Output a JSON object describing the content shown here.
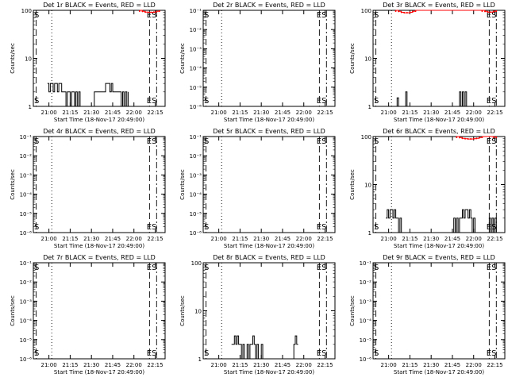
{
  "colors": {
    "background": "#ffffff",
    "events": "#000000",
    "lld": "#ff0000"
  },
  "x_ticks": [
    "21:00",
    "21:15",
    "21:30",
    "21:45",
    "22:00",
    "22:15"
  ],
  "x_label": "Start Time (18-Nov-17 20:49:00)",
  "y_label": "Counts/sec",
  "chart_data": [
    {
      "type": "line",
      "title": "Det 1r BLACK = Events, RED = LLD",
      "scale": "log",
      "ylim": [
        1,
        100
      ],
      "y_ticks": [
        "1",
        "10",
        "100"
      ],
      "x_ticks": [
        "21:00",
        "21:15",
        "21:30",
        "21:45",
        "22:00",
        "22:15"
      ],
      "xlabel": "Start Time (18-Nov-17 20:49:00)",
      "ylabel": "Counts/sec",
      "markers": [
        "S",
        "ES"
      ],
      "series": [
        {
          "color": "#000000",
          "x": [
            "20:59",
            "21:00",
            "21:01",
            "21:02",
            "21:03",
            "21:04",
            "21:05",
            "21:06",
            "21:07",
            "21:08",
            "21:09",
            "21:10",
            "21:11",
            "21:12",
            "21:13",
            "21:14",
            "21:15",
            "21:16",
            "21:17",
            "21:18",
            "21:19",
            "21:20",
            "21:21",
            "21:22",
            "21:23",
            "21:24",
            "21:25",
            "21:26",
            "21:27",
            "21:28",
            "21:29",
            "21:30",
            "21:31",
            "21:32",
            "21:33",
            "21:34",
            "21:35",
            "21:36",
            "21:37",
            "21:38",
            "21:39",
            "21:40",
            "21:41",
            "21:42",
            "21:43",
            "21:44",
            "21:45",
            "21:46",
            "21:47",
            "21:48",
            "21:49",
            "21:50",
            "21:51",
            "21:52",
            "21:53",
            "21:54",
            "21:55",
            "21:56"
          ],
          "y": [
            3,
            2,
            3,
            3,
            2,
            3,
            3,
            2,
            3,
            3,
            2,
            2,
            2,
            1,
            2,
            2,
            1,
            2,
            2,
            1,
            2,
            1,
            2,
            1,
            1,
            1,
            1,
            1,
            1,
            1,
            1,
            1,
            1,
            2,
            2,
            2,
            2,
            2,
            2,
            2,
            2,
            3,
            3,
            3,
            2,
            3,
            2,
            2,
            2,
            2,
            2,
            2,
            1,
            2,
            1,
            2,
            1,
            2
          ]
        },
        {
          "color": "#ff0000",
          "x": [
            "22:04",
            "22:06",
            "22:08",
            "22:10",
            "22:12",
            "22:14",
            "22:16",
            "22:18"
          ],
          "y": [
            100,
            95,
            92,
            91,
            91,
            92,
            95,
            100
          ]
        }
      ]
    },
    {
      "type": "line",
      "title": "Det 2r BLACK = Events, RED = LLD",
      "scale": "log",
      "ylim": [
        1e-06,
        0.1
      ],
      "y_ticks": [
        "10⁻⁶",
        "10⁻⁵",
        "10⁻⁴",
        "10⁻³",
        "10⁻²",
        "10⁻¹"
      ],
      "x_ticks": [
        "21:00",
        "21:15",
        "21:30",
        "21:45",
        "22:00",
        "22:15"
      ],
      "xlabel": "Start Time (18-Nov-17 20:49:00)",
      "ylabel": "Counts/sec",
      "markers": [
        "S",
        "ES"
      ],
      "series": []
    },
    {
      "type": "line",
      "title": "Det 3r BLACK = Events, RED = LLD",
      "scale": "log",
      "ylim": [
        1,
        100
      ],
      "y_ticks": [
        "1",
        "10",
        "100"
      ],
      "x_ticks": [
        "21:00",
        "21:15",
        "21:30",
        "21:45",
        "22:00",
        "22:15"
      ],
      "xlabel": "Start Time (18-Nov-17 20:49:00)",
      "ylabel": "Counts/sec",
      "markers": [
        "S",
        "ES"
      ],
      "series": [
        {
          "color": "#000000",
          "x": [
            "21:05",
            "21:06",
            "21:07",
            "21:08",
            "21:09",
            "21:10",
            "21:11",
            "21:12",
            "21:13",
            "21:14",
            "21:15",
            "21:16",
            "21:48",
            "21:49",
            "21:50",
            "21:51",
            "21:52",
            "21:53",
            "21:54",
            "21:55",
            "21:56",
            "21:57",
            "21:58",
            "21:59"
          ],
          "y": [
            1,
            1.5,
            1,
            1,
            1,
            1,
            1,
            2,
            1,
            1,
            1,
            1,
            1,
            1,
            2,
            1,
            2,
            1,
            2,
            1,
            1,
            1,
            1,
            1
          ]
        },
        {
          "color": "#ff0000",
          "x": [
            "21:05",
            "21:07",
            "21:09",
            "21:11",
            "21:13",
            "21:15",
            "21:17",
            "21:19",
            "22:06",
            "22:08",
            "22:10",
            "22:12",
            "22:14",
            "22:16"
          ],
          "y": [
            100,
            95,
            91,
            89,
            89,
            91,
            95,
            100,
            100,
            95,
            92,
            92,
            95,
            100
          ]
        }
      ]
    },
    {
      "type": "line",
      "title": "Det 4r BLACK = Events, RED = LLD",
      "scale": "log",
      "ylim": [
        1e-06,
        0.1
      ],
      "y_ticks": [
        "10⁻⁶",
        "10⁻⁵",
        "10⁻⁴",
        "10⁻³",
        "10⁻²",
        "10⁻¹"
      ],
      "x_ticks": [
        "21:00",
        "21:15",
        "21:30",
        "21:45",
        "22:00",
        "22:15"
      ],
      "xlabel": "Start Time (18-Nov-17 20:49:00)",
      "ylabel": "Counts/sec",
      "markers": [
        "S",
        "ES"
      ],
      "series": []
    },
    {
      "type": "line",
      "title": "Det 5r BLACK = Events, RED = LLD",
      "scale": "log",
      "ylim": [
        1e-06,
        0.1
      ],
      "y_ticks": [
        "10⁻⁶",
        "10⁻⁵",
        "10⁻⁴",
        "10⁻³",
        "10⁻²",
        "10⁻¹"
      ],
      "x_ticks": [
        "21:00",
        "21:15",
        "21:30",
        "21:45",
        "22:00",
        "22:15"
      ],
      "xlabel": "Start Time (18-Nov-17 20:49:00)",
      "ylabel": "Counts/sec",
      "markers": [
        "S",
        "ES"
      ],
      "series": []
    },
    {
      "type": "line",
      "title": "Det 6r BLACK = Events, RED = LLD",
      "scale": "log",
      "ylim": [
        1,
        100
      ],
      "y_ticks": [
        "1",
        "10",
        "100"
      ],
      "x_ticks": [
        "21:00",
        "21:15",
        "21:30",
        "21:45",
        "22:00",
        "22:15"
      ],
      "xlabel": "Start Time (18-Nov-17 20:49:00)",
      "ylabel": "Counts/sec",
      "markers": [
        "S",
        "ES"
      ],
      "series": [
        {
          "color": "#000000",
          "x": [
            "20:58",
            "20:59",
            "21:00",
            "21:01",
            "21:02",
            "21:03",
            "21:04",
            "21:05",
            "21:06",
            "21:07",
            "21:08",
            "21:09",
            "21:10",
            "21:11",
            "21:12",
            "21:45",
            "21:46",
            "21:47",
            "21:48",
            "21:49",
            "21:50",
            "21:51",
            "21:52",
            "21:53",
            "21:54",
            "21:55",
            "21:56",
            "21:57",
            "21:58",
            "21:59",
            "22:00",
            "22:01",
            "22:02",
            "22:03",
            "22:04",
            "22:05",
            "22:06",
            "22:07",
            "22:08",
            "22:09",
            "22:10",
            "22:11",
            "22:12",
            "22:13",
            "22:14",
            "22:15",
            "22:16"
          ],
          "y": [
            2,
            3,
            2,
            3,
            3,
            2,
            3,
            2,
            2,
            1,
            2,
            1,
            1,
            1,
            1,
            1,
            2,
            1,
            2,
            1,
            2,
            2,
            3,
            2,
            3,
            3,
            2,
            3,
            2,
            1,
            2,
            1,
            1,
            1,
            1,
            1,
            1,
            1,
            1,
            1,
            1,
            2,
            1,
            2,
            1,
            2,
            1
          ]
        },
        {
          "color": "#ff0000",
          "x": [
            "21:48",
            "21:50",
            "21:52",
            "21:54",
            "21:56",
            "21:58",
            "22:00",
            "22:02",
            "22:04",
            "22:06",
            "22:14",
            "22:16"
          ],
          "y": [
            100,
            95,
            92,
            90,
            89,
            89,
            90,
            92,
            95,
            100,
            98,
            100
          ]
        }
      ]
    },
    {
      "type": "line",
      "title": "Det 7r BLACK = Events, RED = LLD",
      "scale": "log",
      "ylim": [
        1e-06,
        0.1
      ],
      "y_ticks": [
        "10⁻⁶",
        "10⁻⁵",
        "10⁻⁴",
        "10⁻³",
        "10⁻²",
        "10⁻¹"
      ],
      "x_ticks": [
        "21:00",
        "21:15",
        "21:30",
        "21:45",
        "22:00",
        "22:15"
      ],
      "xlabel": "Start Time (18-Nov-17 20:49:00)",
      "ylabel": "Counts/sec",
      "markers": [
        "S",
        "ES"
      ],
      "series": []
    },
    {
      "type": "line",
      "title": "Det 8r BLACK = Events, RED = LLD",
      "scale": "log",
      "ylim": [
        1,
        100
      ],
      "y_ticks": [
        "1",
        "10",
        "100"
      ],
      "x_ticks": [
        "21:00",
        "21:15",
        "21:30",
        "21:45",
        "22:00",
        "22:15"
      ],
      "xlabel": "Start Time (18-Nov-17 20:49:00)",
      "ylabel": "Counts/sec",
      "markers": [
        "S",
        "ES"
      ],
      "series": [
        {
          "color": "#000000",
          "x": [
            "21:09",
            "21:10",
            "21:11",
            "21:12",
            "21:13",
            "21:14",
            "21:15",
            "21:16",
            "21:17",
            "21:18",
            "21:19",
            "21:20",
            "21:21",
            "21:22",
            "21:23",
            "21:24",
            "21:25",
            "21:26",
            "21:27",
            "21:28",
            "21:29",
            "21:30",
            "21:31",
            "21:32",
            "21:33",
            "21:34",
            "21:35",
            "21:53",
            "21:54",
            "21:55",
            "21:56"
          ],
          "y": [
            2,
            2,
            3,
            2,
            3,
            2,
            2,
            1,
            2,
            1,
            1,
            2,
            1,
            2,
            2,
            3,
            2,
            1,
            2,
            1,
            1,
            2,
            1,
            1,
            1,
            1,
            1,
            2,
            3,
            2,
            2
          ]
        },
        {
          "color": "#ff0000",
          "x": [],
          "y": []
        }
      ]
    },
    {
      "type": "line",
      "title": "Det 9r BLACK = Events, RED = LLD",
      "scale": "log",
      "ylim": [
        1e-06,
        0.1
      ],
      "y_ticks": [
        "10⁻⁶",
        "10⁻⁵",
        "10⁻⁴",
        "10⁻³",
        "10⁻²",
        "10⁻¹"
      ],
      "x_ticks": [
        "21:00",
        "21:15",
        "21:30",
        "21:45",
        "22:00",
        "22:15"
      ],
      "xlabel": "Start Time (18-Nov-17 20:49:00)",
      "ylabel": "Counts/sec",
      "markers": [
        "S",
        "ES"
      ],
      "series": []
    }
  ]
}
